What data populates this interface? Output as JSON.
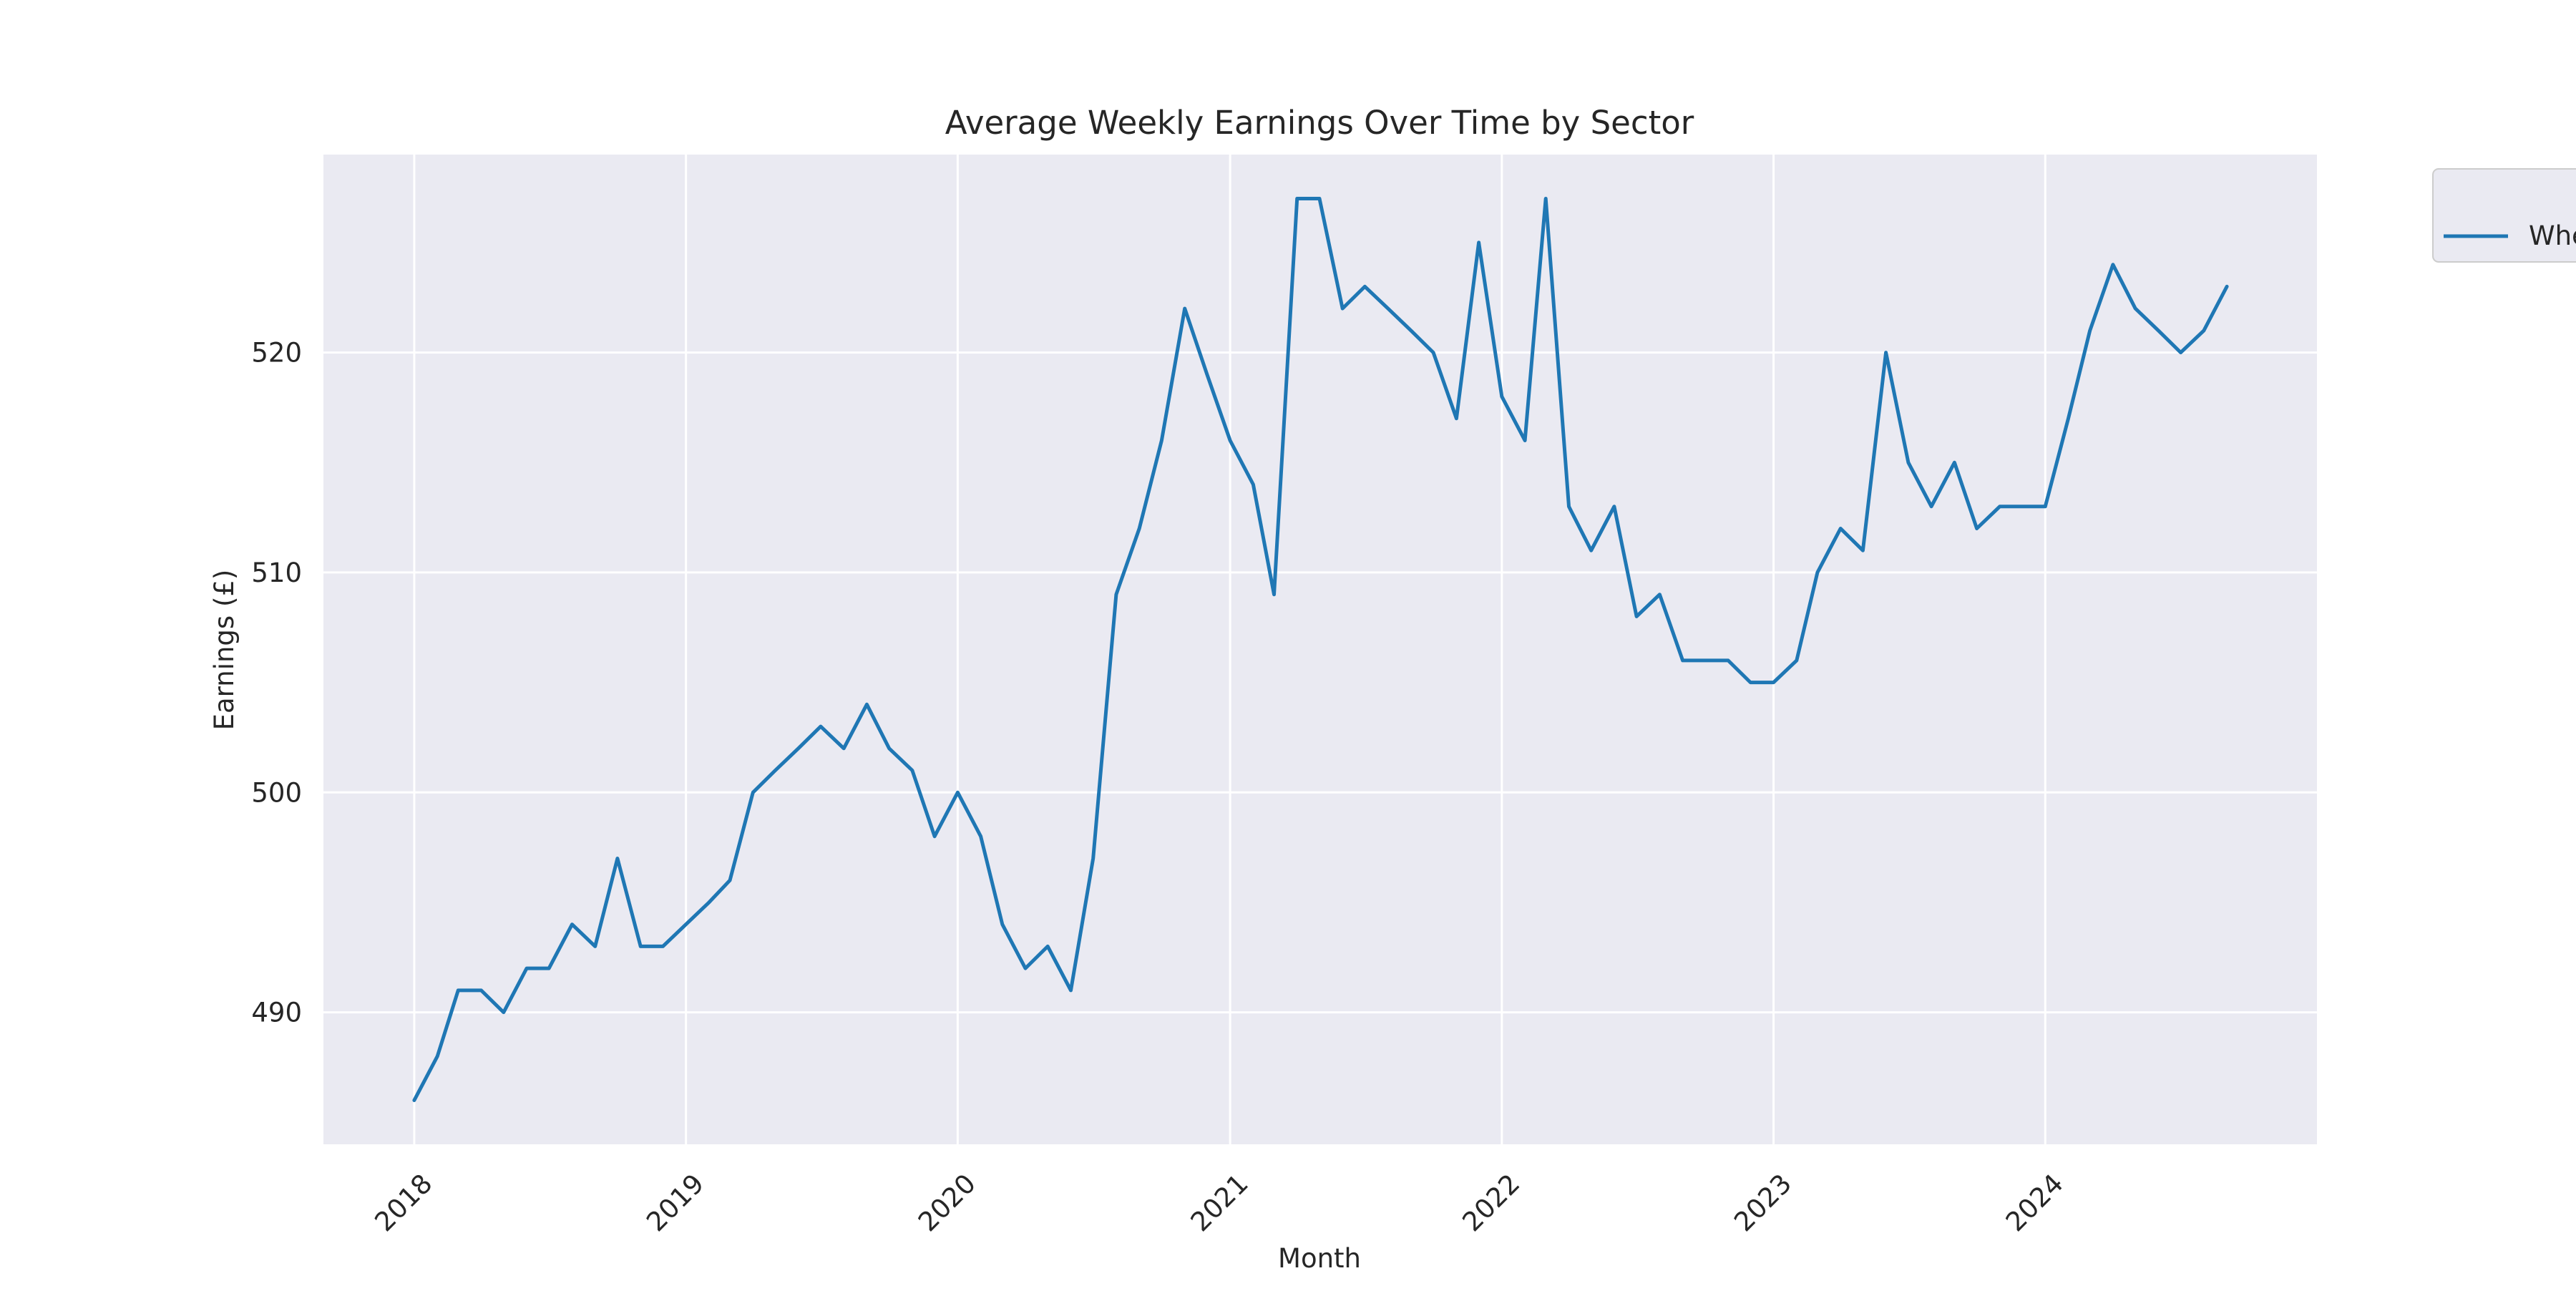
{
  "chart_data": {
    "type": "line",
    "title": "Average Weekly Earnings Over Time by Sector",
    "xlabel": "Month",
    "ylabel": "Earnings (£)",
    "x_axis_type": "date",
    "xlim": [
      "2017-09-01",
      "2024-12-31"
    ],
    "ylim": [
      484.0,
      529.0
    ],
    "x_ticks": [
      "2018-01-01",
      "2019-01-01",
      "2020-01-01",
      "2021-01-01",
      "2022-01-01",
      "2023-01-01",
      "2024-01-01"
    ],
    "x_tick_labels": [
      "2018",
      "2019",
      "2020",
      "2021",
      "2022",
      "2023",
      "2024"
    ],
    "y_ticks": [
      490,
      500,
      510,
      520
    ],
    "y_tick_labels": [
      "490",
      "500",
      "510",
      "520"
    ],
    "grid": true,
    "style": "seaborn darkgrid",
    "legend": {
      "placement": "outside top-right",
      "entries": [
        "Whe"
      ]
    },
    "colors": {
      "plot_background": "#eaeaf2",
      "grid": "#ffffff",
      "line": "#1f77b4"
    },
    "series": [
      {
        "name": "Whe",
        "x": [
          "2018-01",
          "2018-02",
          "2018-03",
          "2018-04",
          "2018-05",
          "2018-06",
          "2018-07",
          "2018-08",
          "2018-09",
          "2018-10",
          "2018-11",
          "2018-12",
          "2019-01",
          "2019-02",
          "2019-03",
          "2019-04",
          "2019-05",
          "2019-06",
          "2019-07",
          "2019-08",
          "2019-09",
          "2019-10",
          "2019-11",
          "2019-12",
          "2020-01",
          "2020-02",
          "2020-03",
          "2020-04",
          "2020-05",
          "2020-06",
          "2020-07",
          "2020-08",
          "2020-09",
          "2020-10",
          "2020-11",
          "2020-12",
          "2021-01",
          "2021-02",
          "2021-03",
          "2021-04",
          "2021-05",
          "2021-06",
          "2021-07",
          "2021-08",
          "2021-09",
          "2021-10",
          "2021-11",
          "2021-12",
          "2022-01",
          "2022-02",
          "2022-03",
          "2022-04",
          "2022-05",
          "2022-06",
          "2022-07",
          "2022-08",
          "2022-09",
          "2022-10",
          "2022-11",
          "2022-12",
          "2023-01",
          "2023-02",
          "2023-03",
          "2023-04",
          "2023-05",
          "2023-06",
          "2023-07",
          "2023-08",
          "2023-09",
          "2023-10",
          "2023-11",
          "2023-12",
          "2024-01",
          "2024-02",
          "2024-03",
          "2024-04",
          "2024-05",
          "2024-06",
          "2024-07",
          "2024-08",
          "2024-09"
        ],
        "y": [
          486,
          488,
          491,
          491,
          490,
          492,
          492,
          494,
          493,
          497,
          493,
          493,
          494,
          495,
          496,
          500,
          501,
          502,
          503,
          502,
          504,
          502,
          501,
          498,
          500,
          498,
          494,
          492,
          493,
          491,
          497,
          509,
          512,
          516,
          522,
          519,
          516,
          514,
          509,
          527,
          527,
          522,
          523,
          522,
          521,
          520,
          517,
          525,
          518,
          516,
          527,
          513,
          511,
          513,
          508,
          509,
          506,
          506,
          506,
          505,
          505,
          506,
          510,
          512,
          511,
          520,
          515,
          513,
          515,
          512,
          513,
          513,
          513,
          517,
          521,
          524,
          522,
          521,
          520,
          521,
          523
        ]
      }
    ]
  }
}
